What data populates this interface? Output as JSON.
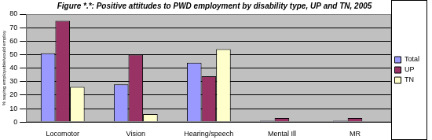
{
  "chart_data": {
    "type": "bar",
    "title": "Figure *.*: Positive attitudes to PWD employment by disability type, UP and TN, 2005",
    "y_label": "% saying employable/would employ",
    "categories": [
      "Locomotor",
      "Vision",
      "Hearing/speech",
      "Mental Ill",
      "MR"
    ],
    "series": [
      {
        "name": "Total",
        "color": "#9999ff",
        "values": [
          51,
          28,
          44,
          1,
          1
        ]
      },
      {
        "name": "UP",
        "color": "#993366",
        "values": [
          75,
          50,
          34,
          3,
          3
        ]
      },
      {
        "name": "TN",
        "color": "#ffffcc",
        "values": [
          26,
          6,
          54,
          0,
          0
        ]
      }
    ],
    "ylim": [
      0,
      80
    ],
    "yticks": [
      0,
      10,
      20,
      30,
      40,
      50,
      60,
      70,
      80
    ],
    "grid": true,
    "legend": "right"
  }
}
